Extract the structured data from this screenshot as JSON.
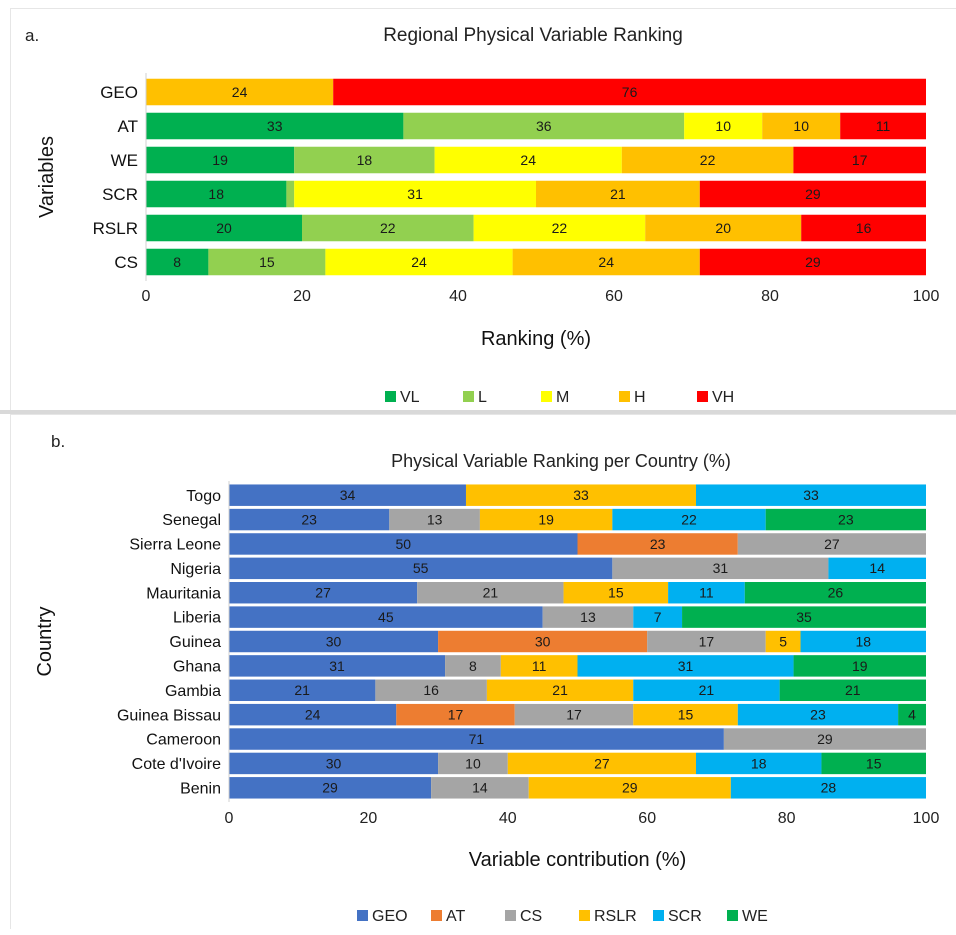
{
  "chart_data": [
    {
      "type": "bar",
      "orientation": "horizontal",
      "stacked": true,
      "panel_label": "a.",
      "title": "Regional Physical Variable Ranking",
      "xlabel": "Ranking (%)",
      "ylabel": "Variables",
      "xlim": [
        0,
        100
      ],
      "xticks": [
        0,
        20,
        40,
        60,
        80,
        100
      ],
      "categories": [
        "GEO",
        "AT",
        "WE",
        "SCR",
        "RSLR",
        "CS"
      ],
      "series": [
        {
          "name": "VL",
          "color": "#00b050",
          "values": [
            0,
            33,
            19,
            18,
            20,
            8
          ],
          "labels": [
            "",
            "33",
            "19",
            "18",
            "20",
            "8"
          ]
        },
        {
          "name": "L",
          "color": "#92d050",
          "values": [
            0,
            36,
            18,
            1,
            22,
            15
          ],
          "labels": [
            "",
            "36",
            "18",
            "",
            "22",
            "15"
          ]
        },
        {
          "name": "M",
          "color": "#ffff00",
          "values": [
            0,
            10,
            24,
            31,
            22,
            24
          ],
          "labels": [
            "",
            "10",
            "24",
            "31",
            "22",
            "24"
          ]
        },
        {
          "name": "H",
          "color": "#ffc000",
          "values": [
            24,
            10,
            22,
            21,
            20,
            24
          ],
          "labels": [
            "24",
            "10",
            "22",
            "21",
            "20",
            "24"
          ]
        },
        {
          "name": "VH",
          "color": "#ff0000",
          "values": [
            76,
            11,
            17,
            29,
            16,
            29
          ],
          "labels": [
            "76",
            "11",
            "17",
            "29",
            "16",
            "29"
          ]
        }
      ],
      "legend_position": "bottom",
      "grid": false
    },
    {
      "type": "bar",
      "orientation": "horizontal",
      "stacked": true,
      "panel_label": "b.",
      "title": "Physical Variable Ranking per Country (%)",
      "xlabel": "Variable contribution (%)",
      "ylabel": "Country",
      "xlim": [
        0,
        100
      ],
      "xticks": [
        0,
        20,
        40,
        60,
        80,
        100
      ],
      "categories": [
        "Togo",
        "Senegal",
        "Sierra Leone",
        "Nigeria",
        "Mauritania",
        "Liberia",
        "Guinea",
        "Ghana",
        "Gambia",
        "Guinea Bissau",
        "Cameroon",
        "Cote d'Ivoire",
        "Benin"
      ],
      "series": [
        {
          "name": "GEO",
          "color": "#4472c4",
          "values": [
            34,
            23,
            50,
            55,
            27,
            45,
            30,
            31,
            21,
            24,
            71,
            30,
            29
          ]
        },
        {
          "name": "AT",
          "color": "#ed7d31",
          "values": [
            0,
            0,
            23,
            0,
            0,
            0,
            30,
            0,
            0,
            17,
            0,
            0,
            0
          ]
        },
        {
          "name": "CS",
          "color": "#a5a5a5",
          "values": [
            0,
            13,
            27,
            31,
            21,
            13,
            17,
            8,
            16,
            17,
            29,
            10,
            14
          ]
        },
        {
          "name": "RSLR",
          "color": "#ffc000",
          "values": [
            33,
            19,
            0,
            0,
            15,
            0,
            5,
            11,
            21,
            15,
            0,
            27,
            29
          ]
        },
        {
          "name": "SCR",
          "color": "#00b0f0",
          "values": [
            33,
            22,
            0,
            14,
            11,
            7,
            18,
            31,
            21,
            23,
            0,
            18,
            28
          ]
        },
        {
          "name": "WE",
          "color": "#00b050",
          "values": [
            0,
            23,
            0,
            0,
            26,
            35,
            0,
            19,
            21,
            4,
            0,
            15,
            0
          ]
        }
      ],
      "legend_position": "bottom",
      "grid": false
    }
  ]
}
